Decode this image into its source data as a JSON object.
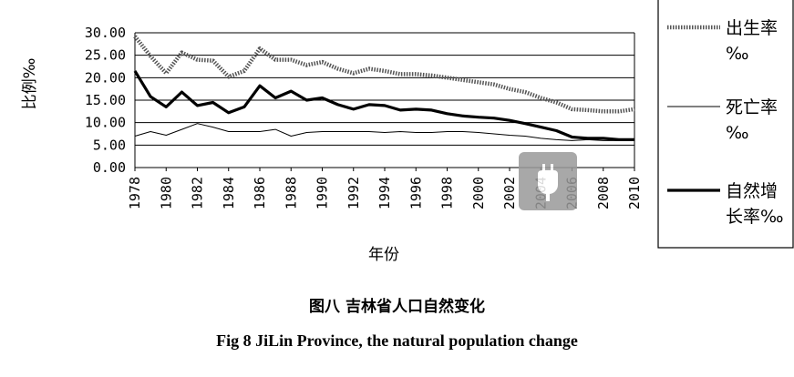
{
  "chart_data": {
    "type": "line",
    "xlabel": "年份",
    "ylabel": "比例‰",
    "ylim": [
      0,
      30
    ],
    "yticks": [
      "0.00",
      "5.00",
      "10.00",
      "15.00",
      "20.00",
      "25.00",
      "30.00"
    ],
    "x": [
      1978,
      1979,
      1980,
      1981,
      1982,
      1983,
      1984,
      1985,
      1986,
      1987,
      1988,
      1989,
      1990,
      1991,
      1992,
      1993,
      1994,
      1995,
      1996,
      1997,
      1998,
      1999,
      2000,
      2001,
      2002,
      2003,
      2004,
      2005,
      2006,
      2007,
      2008,
      2009,
      2010
    ],
    "xticks": [
      "1978",
      "1980",
      "1982",
      "1984",
      "1986",
      "1988",
      "1990",
      "1992",
      "1994",
      "1996",
      "1998",
      "2000",
      "2002",
      "2004",
      "2006",
      "2008",
      "2010"
    ],
    "grid": "horizontal",
    "legend_position": "right",
    "series": [
      {
        "name": "出生率‰",
        "legend_lines": [
          "出生率",
          "‰"
        ],
        "style": "dotted-thick",
        "color": "#555555",
        "values": [
          29.2,
          24.8,
          21.0,
          25.6,
          24.0,
          23.8,
          20.2,
          21.5,
          26.5,
          24.0,
          24.0,
          22.8,
          23.5,
          22.0,
          21.0,
          22.0,
          21.5,
          20.8,
          20.8,
          20.5,
          20.0,
          19.5,
          19.0,
          18.5,
          17.5,
          16.8,
          15.5,
          14.5,
          13.0,
          12.8,
          12.5,
          12.5,
          13.0
        ]
      },
      {
        "name": "死亡率‰",
        "legend_lines": [
          "死亡率",
          "‰"
        ],
        "style": "thin",
        "color": "#000000",
        "values": [
          7.0,
          8.0,
          7.2,
          8.5,
          9.8,
          9.0,
          8.0,
          8.0,
          8.0,
          8.5,
          7.0,
          7.8,
          8.0,
          8.0,
          8.0,
          8.0,
          7.8,
          8.0,
          7.8,
          7.8,
          8.0,
          8.0,
          7.8,
          7.5,
          7.2,
          7.0,
          6.5,
          6.2,
          6.0,
          6.2,
          6.0,
          6.0,
          6.2
        ]
      },
      {
        "name": "自然增长率‰",
        "legend_lines": [
          "自然增",
          "长率‰"
        ],
        "style": "thick",
        "color": "#000000",
        "values": [
          21.5,
          15.8,
          13.5,
          16.8,
          13.8,
          14.5,
          12.2,
          13.5,
          18.2,
          15.5,
          17.0,
          15.0,
          15.5,
          14.0,
          13.0,
          14.0,
          13.8,
          12.8,
          13.0,
          12.8,
          12.0,
          11.5,
          11.2,
          11.0,
          10.5,
          9.8,
          9.0,
          8.2,
          6.8,
          6.5,
          6.5,
          6.2,
          6.2
        ]
      }
    ]
  },
  "captions": {
    "chinese": "图八  吉林省人口自然变化",
    "english": "Fig 8 JiLin Province, the natural population change"
  }
}
